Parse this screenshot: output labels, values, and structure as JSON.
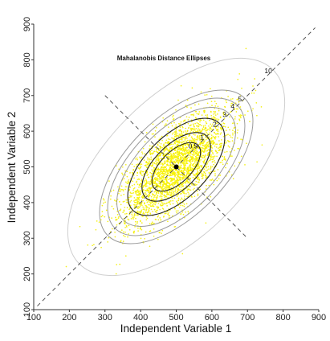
{
  "chart_data": {
    "type": "scatter",
    "title": "Mahalanobis Distance Ellipses",
    "xlabel": "Independent Variable 1",
    "ylabel": "Independent Variable 2",
    "xlim": [
      100,
      900
    ],
    "ylim": [
      100,
      900
    ],
    "x_ticks": [
      "100",
      "200",
      "300",
      "400",
      "500",
      "600",
      "700",
      "800",
      "900"
    ],
    "y_ticks": [
      "100",
      "200",
      "300",
      "400",
      "500",
      "600",
      "700",
      "800",
      "900"
    ],
    "grid": false,
    "center": {
      "x": 500,
      "y": 500
    },
    "major_axis_line": {
      "x": [
        110,
        890
      ],
      "y": [
        110,
        890
      ]
    },
    "minor_axis_line": {
      "x": [
        300,
        700
      ],
      "y": [
        700,
        300
      ]
    },
    "contours": [
      {
        "label": "0.5",
        "distance": 0.5
      },
      {
        "label": "1",
        "distance": 1
      },
      {
        "label": "2",
        "distance": 2
      },
      {
        "label": "3",
        "distance": 3
      },
      {
        "label": "4",
        "distance": 4
      },
      {
        "label": "5",
        "distance": 5
      },
      {
        "label": "10",
        "distance": 10
      }
    ],
    "distribution": {
      "mean": [
        500,
        500
      ],
      "major_axis_sd": 103,
      "minor_axis_sd": 44,
      "major_axis_angle_deg": 45,
      "n_points": 3000
    },
    "colors": {
      "points": "#f4f000",
      "points_dense": "#f7f200",
      "inner_contours": "#222222",
      "outer_contours": "#9a9a9a",
      "outermost_contour": "#cfcfcf",
      "axis_lines": "#555555",
      "center_point": "#000000"
    }
  }
}
